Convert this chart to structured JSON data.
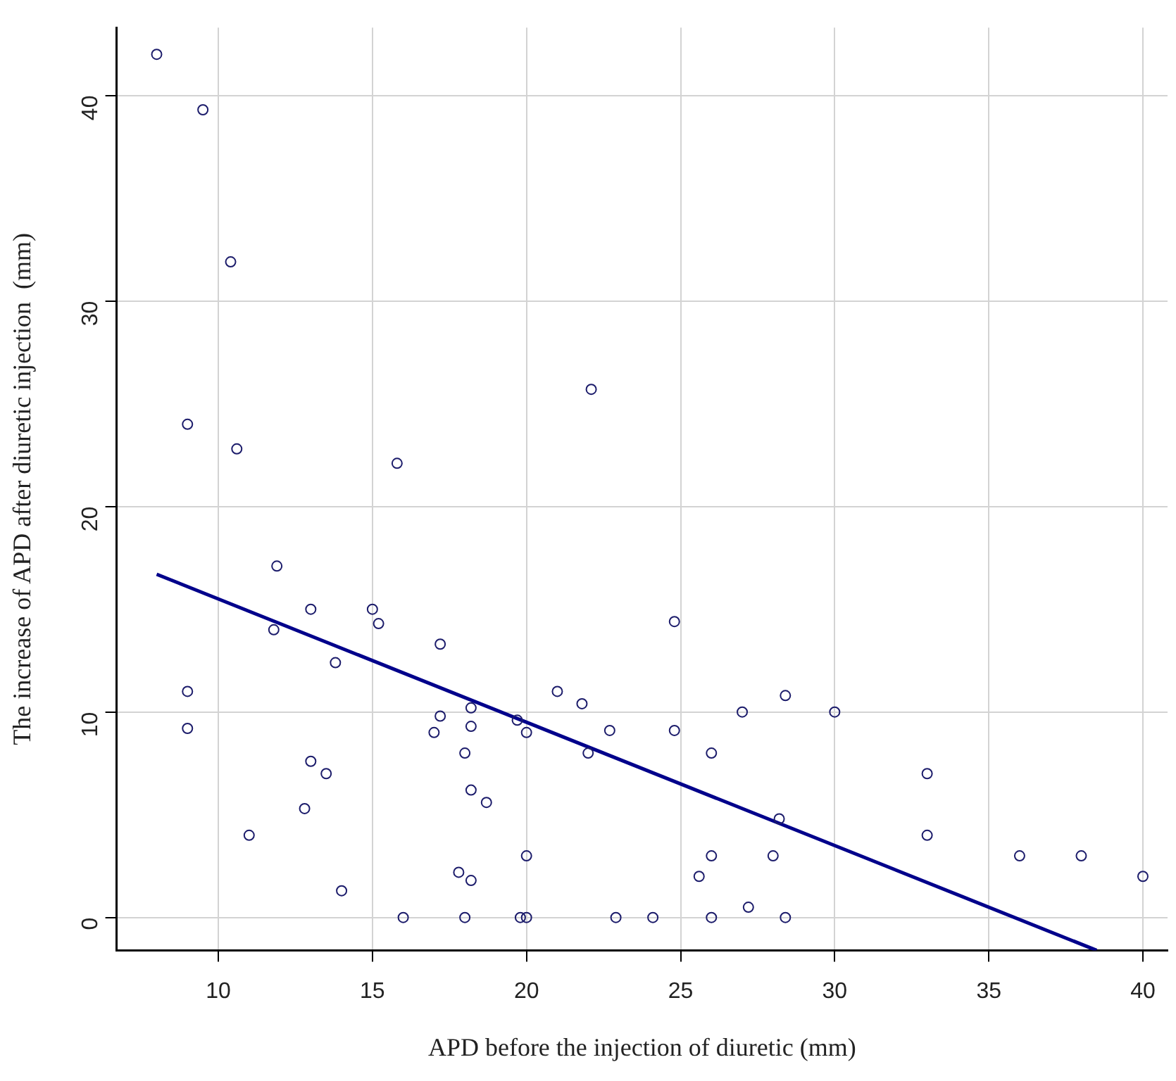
{
  "chart_data": {
    "type": "scatter",
    "xlabel": "APD before the injection of diuretic (mm)",
    "ylabel": "The increase of APD after diuretic injection  (mm)",
    "xlim": [
      6.7,
      40.8
    ],
    "xticks": [
      10,
      15,
      20,
      25,
      30,
      35,
      40
    ],
    "ylim": [
      -1.6,
      43.3
    ],
    "yticks": [
      0,
      10,
      20,
      30,
      40
    ],
    "grid": true,
    "series": [
      {
        "color": "#1c1c6b",
        "marker": "circle",
        "x": [
          8,
          9.5,
          10.4,
          9,
          10.6,
          15.8,
          22.1,
          11.9,
          11.8,
          13,
          15,
          15.2,
          13.8,
          17.2,
          9,
          9,
          17.2,
          17,
          18.2,
          18.2,
          18,
          19.7,
          20,
          21,
          21.8,
          22,
          22.7,
          24.8,
          24.8,
          26,
          27,
          28.4,
          30,
          33,
          33,
          36,
          38,
          40,
          11,
          12.8,
          13,
          13.5,
          14,
          18.2,
          18.7,
          17.8,
          18.2,
          20,
          16,
          18,
          19.8,
          20,
          22.9,
          24.1,
          25.6,
          26,
          26,
          27.2,
          28,
          28.2,
          28.4
        ],
        "values": [
          42,
          39.3,
          31.9,
          24,
          22.8,
          22.1,
          25.7,
          17.1,
          14,
          15,
          15,
          14.3,
          12.4,
          13.3,
          11,
          9.2,
          9.8,
          9,
          10.2,
          9.3,
          8,
          9.6,
          9,
          11,
          10.4,
          8,
          9.1,
          14.4,
          9.1,
          8,
          10,
          10.8,
          10,
          7,
          4,
          3,
          3,
          2,
          4,
          5.3,
          7.6,
          7,
          1.3,
          6.2,
          5.6,
          2.2,
          1.8,
          3,
          0,
          0,
          0,
          0,
          0,
          0,
          2,
          3,
          0,
          0.5,
          3,
          4.8,
          0
        ]
      },
      {
        "type": "line",
        "marker": "none",
        "color": "#00008b",
        "x": [
          8,
          38.5
        ],
        "values": [
          16.7,
          -1.6
        ]
      }
    ]
  }
}
